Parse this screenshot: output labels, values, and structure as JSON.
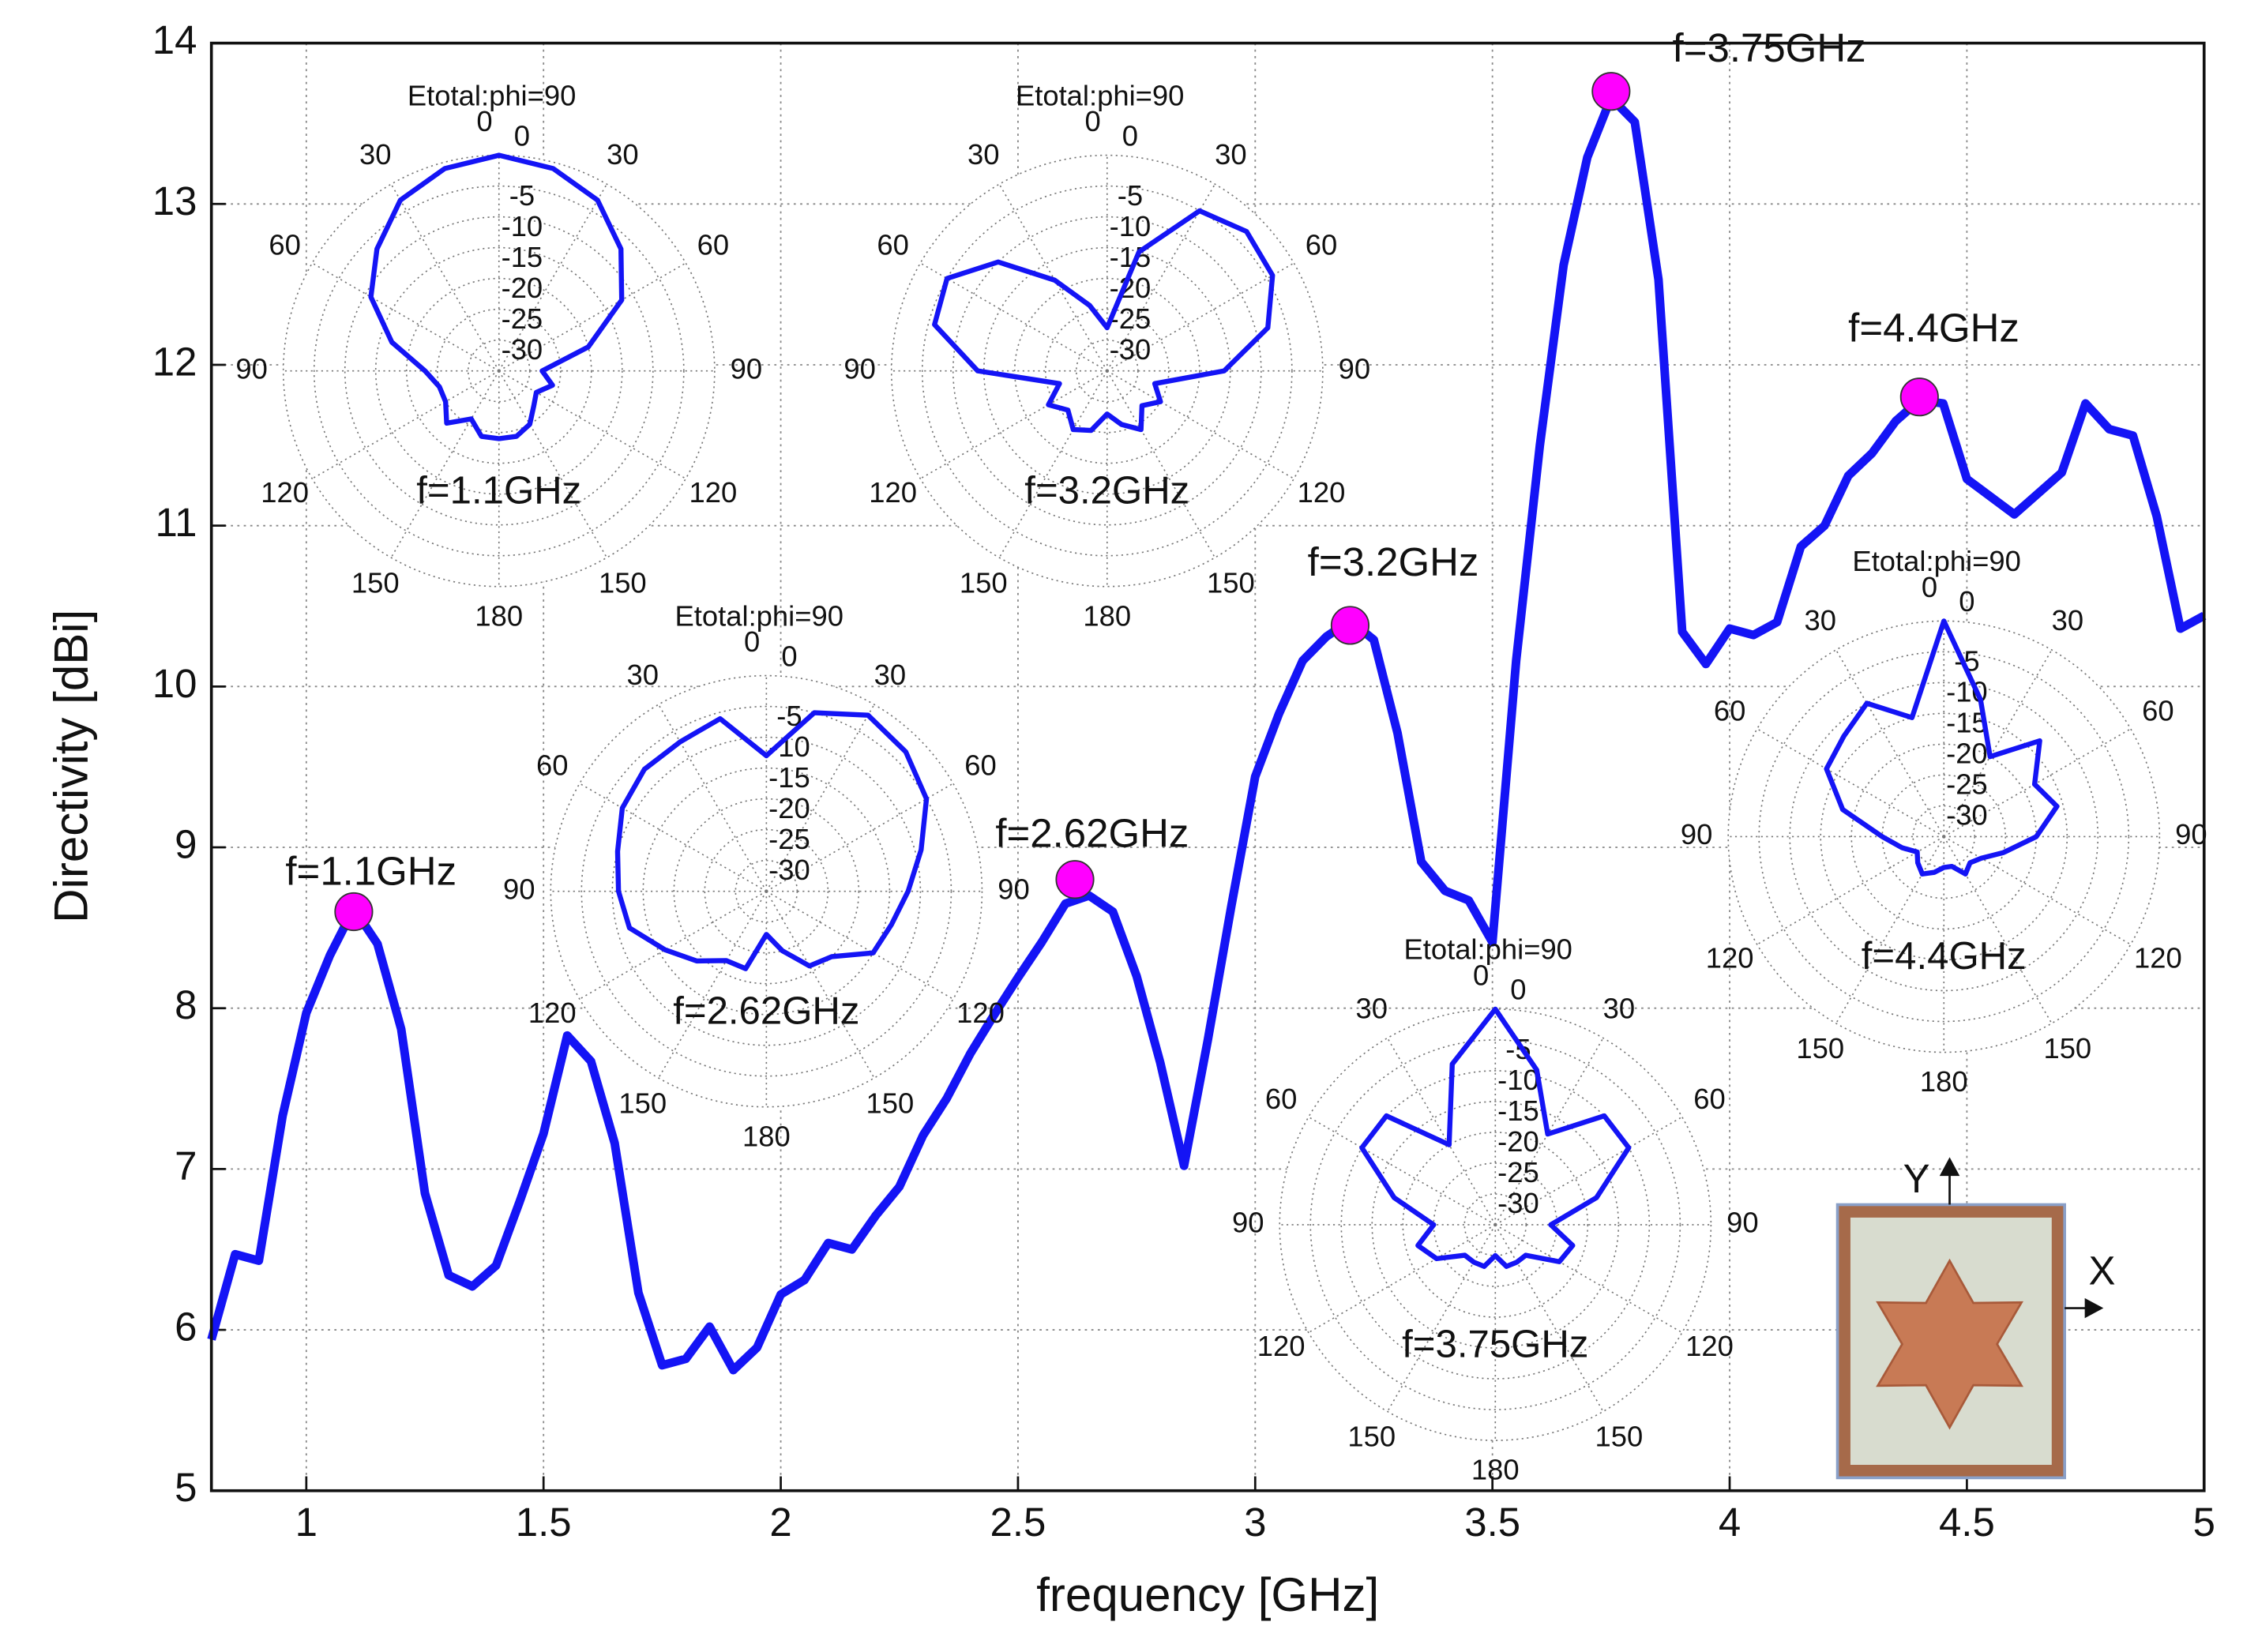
{
  "chart_data": [
    {
      "type": "line",
      "xlabel": "frequency [GHz]",
      "ylabel": "Directivity [dBi]",
      "x": [
        0.8,
        0.85,
        0.9,
        0.95,
        1.0,
        1.05,
        1.1,
        1.15,
        1.2,
        1.25,
        1.3,
        1.35,
        1.4,
        1.45,
        1.5,
        1.55,
        1.6,
        1.65,
        1.7,
        1.75,
        1.8,
        1.85,
        1.9,
        1.95,
        2.0,
        2.05,
        2.1,
        2.15,
        2.2,
        2.25,
        2.3,
        2.35,
        2.4,
        2.45,
        2.5,
        2.55,
        2.6,
        2.65,
        2.7,
        2.75,
        2.8,
        2.85,
        2.9,
        2.95,
        3.0,
        3.05,
        3.1,
        3.15,
        3.2,
        3.25,
        3.3,
        3.35,
        3.4,
        3.45,
        3.5,
        3.55,
        3.6,
        3.65,
        3.7,
        3.75,
        3.8,
        3.85,
        3.9,
        3.95,
        4.0,
        4.05,
        4.1,
        4.15,
        4.2,
        4.25,
        4.3,
        4.35,
        4.4,
        4.45,
        4.5,
        4.55,
        4.6,
        4.65,
        4.7,
        4.75,
        4.8,
        4.85,
        4.9,
        4.95,
        5.0
      ],
      "series": [
        {
          "color": "#1414f5",
          "values": [
            5.94,
            6.47,
            6.43,
            7.33,
            7.97,
            8.33,
            8.62,
            8.4,
            7.87,
            6.85,
            6.34,
            6.27,
            6.4,
            6.8,
            7.22,
            7.83,
            7.67,
            7.16,
            6.23,
            5.78,
            5.82,
            6.02,
            5.75,
            5.89,
            6.22,
            6.31,
            6.54,
            6.5,
            6.71,
            6.89,
            7.21,
            7.44,
            7.72,
            7.96,
            8.19,
            8.41,
            8.65,
            8.7,
            8.6,
            8.2,
            7.66,
            7.02,
            7.8,
            8.64,
            9.44,
            9.83,
            10.16,
            10.31,
            10.41,
            10.29,
            9.71,
            8.91,
            8.73,
            8.67,
            8.41,
            10.16,
            11.5,
            12.62,
            13.29,
            13.66,
            13.51,
            12.53,
            10.34,
            10.14,
            10.36,
            10.32,
            10.4,
            10.87,
            11.0,
            11.31,
            11.45,
            11.65,
            11.78,
            11.76,
            11.29,
            11.18,
            11.07,
            11.2,
            11.33,
            11.76,
            11.6,
            11.56,
            11.06,
            10.36,
            10.44
          ]
        }
      ],
      "markers": {
        "color": "#ff00ff",
        "x": [
          1.1,
          2.62,
          3.2,
          3.75,
          4.4
        ],
        "values": [
          8.6,
          8.8,
          10.38,
          13.7,
          11.8
        ],
        "labels": [
          "f=1.1GHz",
          "f=2.62GHz",
          "f=3.2GHz",
          "f=3.75GHz",
          "f=4.4GHz"
        ]
      },
      "xlim": [
        0.8,
        5
      ],
      "xticks": [
        1,
        1.5,
        2,
        2.5,
        3,
        3.5,
        4,
        4.5,
        5
      ],
      "ylim": [
        5,
        14
      ],
      "yticks": [
        5,
        6,
        7,
        8,
        9,
        10,
        11,
        12,
        13,
        14
      ],
      "grid": true
    },
    {
      "type": "polar",
      "title": "Etotal:phi=90",
      "label": "f=1.1GHz",
      "color": "#1414f5",
      "theta": [
        0,
        15,
        30,
        45,
        60,
        75,
        90,
        105,
        120,
        135,
        150,
        165,
        180,
        -165,
        -150,
        -135,
        -120,
        -105,
        -90,
        -75,
        -60,
        -45,
        -30,
        -15
      ],
      "r": [
        0,
        -1,
        -3,
        -7,
        -12,
        -20,
        -28,
        -26,
        -28,
        -27,
        -25,
        -24,
        -24,
        -24,
        -26,
        -23,
        -25,
        -25,
        -23,
        -17,
        -11,
        -7,
        -3,
        -1
      ],
      "rlim": [
        -35,
        0
      ],
      "rticks": [
        0,
        -5,
        -10,
        -15,
        -20,
        -25,
        -30
      ],
      "thetaticks": [
        0,
        30,
        60,
        90,
        120,
        150,
        180
      ]
    },
    {
      "type": "polar",
      "title": "Etotal:phi=90",
      "label": "f=3.2GHz",
      "color": "#1414f5",
      "theta": [
        0,
        15,
        30,
        45,
        60,
        75,
        90,
        105,
        120,
        135,
        150,
        165,
        180,
        -165,
        -150,
        -135,
        -120,
        -105,
        -90,
        -75,
        -60,
        -45,
        -30,
        -15
      ],
      "r": [
        -28,
        -15,
        -5,
        -3,
        -4,
        -8,
        -16,
        -27,
        -25,
        -27,
        -24,
        -26,
        -28,
        -25,
        -24,
        -26,
        -24,
        -27,
        -14,
        -6,
        -5,
        -10,
        -18,
        -24
      ],
      "rlim": [
        -35,
        0
      ],
      "rticks": [
        0,
        -5,
        -10,
        -15,
        -20,
        -25,
        -30
      ],
      "thetaticks": [
        0,
        30,
        60,
        90,
        120,
        150,
        180
      ]
    },
    {
      "type": "polar",
      "title": "Etotal:phi=90",
      "label": "f=2.62GHz",
      "color": "#1414f5",
      "theta": [
        0,
        15,
        30,
        45,
        60,
        75,
        90,
        105,
        120,
        135,
        150,
        165,
        180,
        -165,
        -150,
        -135,
        -120,
        -105,
        -90,
        -75,
        -60,
        -45,
        -30,
        -15
      ],
      "r": [
        -13,
        -5,
        -2,
        -3,
        -5,
        -9,
        -12,
        -14,
        -15,
        -20,
        -21,
        -25,
        -28,
        -22,
        -22,
        -19,
        -16,
        -12,
        -11,
        -10,
        -8,
        -7,
        -7,
        -6
      ],
      "rlim": [
        -35,
        0
      ],
      "rticks": [
        0,
        -5,
        -10,
        -15,
        -20,
        -25,
        -30
      ],
      "thetaticks": [
        0,
        30,
        60,
        90,
        120,
        150,
        180
      ]
    },
    {
      "type": "polar",
      "title": "Etotal:phi=90",
      "label": "f=3.75GHz",
      "color": "#1414f5",
      "theta": [
        0,
        15,
        30,
        45,
        60,
        75,
        90,
        105,
        120,
        135,
        150,
        165,
        180,
        -165,
        -150,
        -135,
        -120,
        -105,
        -90,
        -75,
        -60,
        -45,
        -30,
        -15
      ],
      "r": [
        0,
        -9,
        -18,
        -10,
        -10,
        -18,
        -26,
        -22,
        -23,
        -28,
        -28,
        -28,
        -30,
        -28,
        -28,
        -28,
        -24,
        -22,
        -25,
        -18,
        -10,
        -10,
        -20,
        -8
      ],
      "rlim": [
        -35,
        0
      ],
      "rticks": [
        0,
        -5,
        -10,
        -15,
        -20,
        -25,
        -30
      ],
      "thetaticks": [
        0,
        30,
        60,
        90,
        120,
        150,
        180
      ]
    },
    {
      "type": "polar",
      "title": "Etotal:phi=90",
      "label": "f=4.4GHz",
      "color": "#1414f5",
      "theta": [
        0,
        15,
        30,
        45,
        60,
        75,
        90,
        105,
        120,
        135,
        150,
        165,
        180,
        -165,
        -150,
        -135,
        -120,
        -105,
        -90,
        -75,
        -60,
        -45,
        -30,
        -15
      ],
      "r": [
        0,
        -12,
        -20,
        -13,
        -18,
        -16,
        -20,
        -25,
        -28,
        -29,
        -28,
        -30,
        -30,
        -29,
        -28,
        -29,
        -30,
        -28,
        -25,
        -18,
        -13,
        -12,
        -10,
        -15
      ],
      "rlim": [
        -35,
        0
      ],
      "rticks": [
        0,
        -5,
        -10,
        -15,
        -20,
        -25,
        -30
      ],
      "thetaticks": [
        0,
        30,
        60,
        90,
        120,
        150,
        180
      ]
    }
  ],
  "photo_axes": {
    "x_label": "X",
    "y_label": "Y"
  }
}
